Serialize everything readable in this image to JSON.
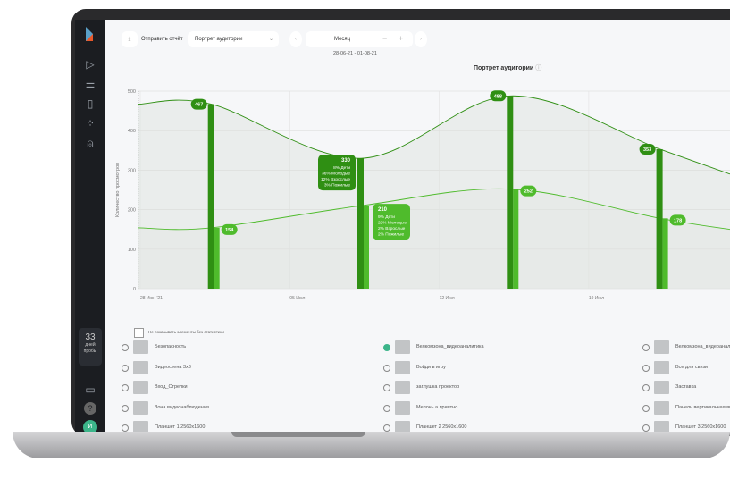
{
  "toolbar": {
    "send_report": "Отправить отчёт",
    "report_select": "Портрет аудитории",
    "period": "Месяц",
    "date_range": "28-06-21 - 01-08-21"
  },
  "sidebar": {
    "trial_days": "33",
    "trial_label": "дней пробы",
    "avatar": "И",
    "icons": [
      "play-icon",
      "filter-icon",
      "file-icon",
      "loader-icon",
      "user-icon"
    ]
  },
  "chart_data": {
    "type": "line",
    "title": "Портрет аудитории",
    "ylabel": "Количество просмотров",
    "ylim": [
      0,
      500
    ],
    "yticks": [
      0,
      100,
      200,
      300,
      400,
      500
    ],
    "xticks": [
      {
        "date": "2021-06-28",
        "label": "28 Июн '21"
      },
      {
        "date": "2021-07-05",
        "label": "05 Июл"
      },
      {
        "date": "2021-07-12",
        "label": "12 Июл"
      },
      {
        "date": "2021-07-19",
        "label": "19 Июл"
      }
    ],
    "grid": true,
    "colors": {
      "dark": "#2f8f13",
      "light": "#4fbb2c"
    },
    "series": [
      {
        "points": [
          {
            "date": "2021-06-28",
            "value": 467
          },
          {
            "date": "2021-07-01",
            "value": 467
          },
          {
            "date": "2021-07-08",
            "value": 330
          },
          {
            "date": "2021-07-15",
            "value": 488
          },
          {
            "date": "2021-07-22",
            "value": 353
          },
          {
            "date": "2021-07-25",
            "value": 290
          }
        ]
      },
      {
        "points": [
          {
            "date": "2021-06-28",
            "value": 154
          },
          {
            "date": "2021-07-01",
            "value": 154
          },
          {
            "date": "2021-07-08",
            "value": 210
          },
          {
            "date": "2021-07-15",
            "value": 252
          },
          {
            "date": "2021-07-22",
            "value": 178
          },
          {
            "date": "2021-07-25",
            "value": 150
          }
        ]
      }
    ],
    "bars": [
      {
        "date": "2021-07-01",
        "dark": 467,
        "light": 154
      },
      {
        "date": "2021-07-08",
        "dark": 330,
        "light": 210,
        "dark_breakdown": [
          "8% Дети",
          "36% Молодые",
          "12% Взрослые",
          "3% Пожилые"
        ],
        "light_breakdown": [
          "9% Дети",
          "22% Молодые",
          "2% Взрослые",
          "2% Пожилые"
        ]
      },
      {
        "date": "2021-07-15",
        "dark": 488,
        "light": 252
      },
      {
        "date": "2021-07-22",
        "dark": 353,
        "light": 178
      }
    ]
  },
  "filter": {
    "hide_empty": "Не показывать элементы без статистики"
  },
  "items": [
    {
      "label": "Безопасность",
      "checked": false
    },
    {
      "label": "Велкомзона_видеоаналитика",
      "checked": true
    },
    {
      "label": "Велкомзона_видеоаналитика",
      "checked": false
    },
    {
      "label": "Видеостена 3x3",
      "checked": false
    },
    {
      "label": "Войди в игру",
      "checked": false
    },
    {
      "label": "Все для связи",
      "checked": false
    },
    {
      "label": "Вход_Стрелки",
      "checked": false
    },
    {
      "label": "заглушка проектор",
      "checked": false
    },
    {
      "label": "Заставка",
      "checked": false
    },
    {
      "label": "Зона видеонаблюдения",
      "checked": false
    },
    {
      "label": "Мелочь а приятно",
      "checked": false
    },
    {
      "label": "Панель вертикальная внутр",
      "checked": false
    },
    {
      "label": "Планшет 1 2560x1600",
      "checked": false
    },
    {
      "label": "Планшет 2 2560x1600",
      "checked": false
    },
    {
      "label": "Планшет 3 2560x1600",
      "checked": false
    }
  ]
}
